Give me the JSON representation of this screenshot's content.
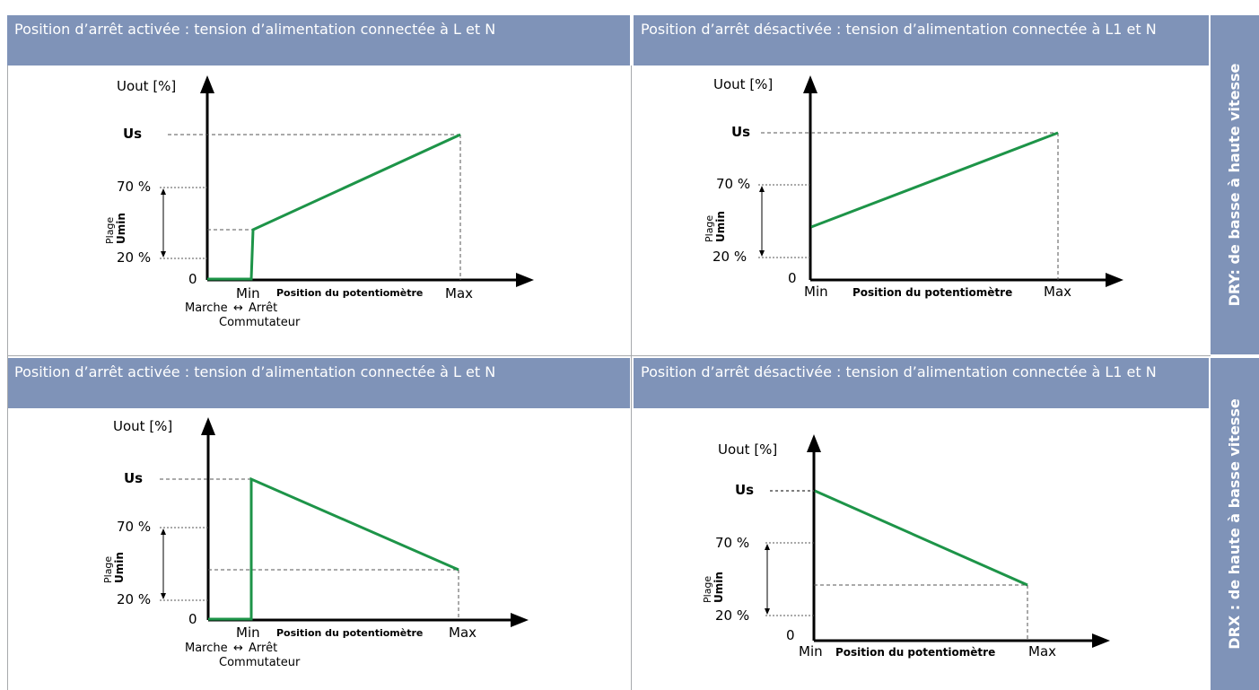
{
  "colors": {
    "header_bg": "#7f93b8",
    "side_bg": "#7f93b8",
    "curve": "#1d9448",
    "grid": "#a7a9ac"
  },
  "rows": [
    {
      "side_label": "DRY: de basse à haute vitesse",
      "panels": [
        {
          "header": "Position d’arrêt activée : tension d’alimentation connectée à L et N",
          "ylabel": "Uout [%]",
          "us": "Us",
          "p70": "70 %",
          "p20": "20 %",
          "zero": "0",
          "plage": "Plage",
          "umin": "Umin",
          "min": "Min",
          "max": "Max",
          "xlabel": "Position du potentiomètre",
          "switch_marche": "Marche",
          "switch_arret": "Arrêt",
          "switch_label": "Commutateur",
          "arrows": "↔"
        },
        {
          "header": "Position d’arrêt désactivée : tension d’alimentation connectée à L1 et N",
          "ylabel": "Uout [%]",
          "us": "Us",
          "p70": "70 %",
          "p20": "20 %",
          "zero": "0",
          "plage": "Plage",
          "umin": "Umin",
          "min": "Min",
          "max": "Max",
          "xlabel": "Position du potentiomètre"
        }
      ]
    },
    {
      "side_label": "DRX : de haute à basse vitesse",
      "panels": [
        {
          "header": "Position d’arrêt activée : tension d’alimentation connectée à L et N",
          "ylabel": "Uout [%]",
          "us": "Us",
          "p70": "70 %",
          "p20": "20 %",
          "zero": "0",
          "plage": "Plage",
          "umin": "Umin",
          "min": "Min",
          "max": "Max",
          "xlabel": "Position du potentiomètre",
          "switch_marche": "Marche",
          "switch_arret": "Arrêt",
          "switch_label": "Commutateur",
          "arrows": "↔"
        },
        {
          "header": "Position d’arrêt désactivée : tension d’alimentation connectée à L1 et N",
          "ylabel": "Uout [%]",
          "us": "Us",
          "p70": "70 %",
          "p20": "20 %",
          "zero": "0",
          "plage": "Plage",
          "umin": "Umin",
          "min": "Min",
          "max": "Max",
          "xlabel": "Position du potentiomètre"
        }
      ]
    }
  ]
}
